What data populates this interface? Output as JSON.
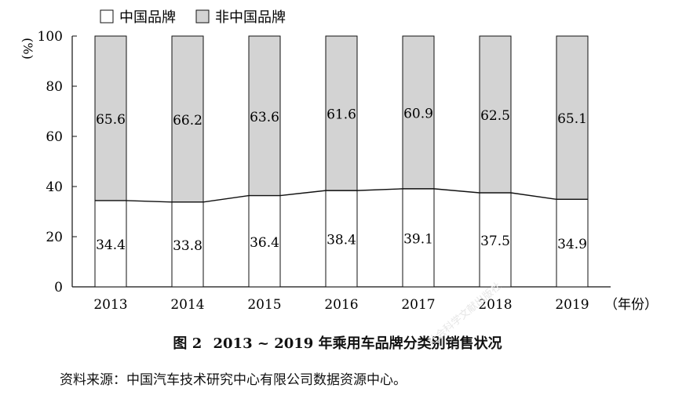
{
  "chart_data": {
    "type": "bar",
    "stacked": true,
    "categories": [
      "2013",
      "2014",
      "2015",
      "2016",
      "2017",
      "2018",
      "2019"
    ],
    "series": [
      {
        "name": "中国品牌",
        "values": [
          34.4,
          33.8,
          36.4,
          38.4,
          39.1,
          37.5,
          34.9
        ],
        "color": "#ffffff"
      },
      {
        "name": "非中国品牌",
        "values": [
          65.6,
          66.2,
          63.6,
          61.6,
          60.9,
          62.5,
          65.1
        ],
        "color": "#d3d3d3"
      }
    ],
    "ylim": [
      0,
      100
    ],
    "yticks": [
      "0",
      "20",
      "40",
      "60",
      "80",
      "100"
    ],
    "ylabel": "%",
    "xlabel": "（年份）",
    "legend_position": "top",
    "line_overlay": "中国品牌 share connected across bar tops"
  },
  "caption": {
    "fig_label": "图 2",
    "title": "2013 ~ 2019 年乘用车品牌分类别销售状况"
  },
  "source_note": "资料来源：中国汽车技术研究中心有限公司数据资源中心。",
  "watermark": "社会科学文献出版社"
}
